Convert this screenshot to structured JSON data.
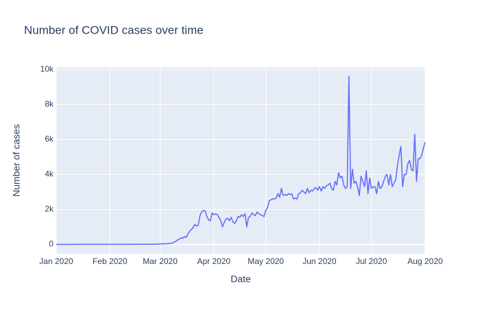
{
  "chart_data": {
    "type": "line",
    "title": "Number of COVID cases over time",
    "x_label": "Date",
    "y_label": "Number of cases",
    "color": "#636efa",
    "grid": true,
    "xlim": [
      "2020-01-01",
      "2020-08-01"
    ],
    "xticks": [
      {
        "value": "2020-01-01",
        "label": "Jan 2020"
      },
      {
        "value": "2020-02-01",
        "label": "Feb 2020"
      },
      {
        "value": "2020-03-01",
        "label": "Mar 2020"
      },
      {
        "value": "2020-04-01",
        "label": "Apr 2020"
      },
      {
        "value": "2020-05-01",
        "label": "May 2020"
      },
      {
        "value": "2020-06-01",
        "label": "Jun 2020"
      },
      {
        "value": "2020-07-01",
        "label": "Jul 2020"
      },
      {
        "value": "2020-08-01",
        "label": "Aug 2020"
      }
    ],
    "ylim": [
      -530,
      10130
    ],
    "yticks": [
      0,
      {
        "value": 2000,
        "label": "2k"
      },
      {
        "value": 4000,
        "label": "4k"
      },
      {
        "value": 6000,
        "label": "6k"
      },
      {
        "value": 8000,
        "label": "8k"
      },
      {
        "value": 10000,
        "label": "10k"
      }
    ],
    "x": [
      "2020-01-01",
      "2020-01-02",
      "2020-01-03",
      "2020-01-04",
      "2020-01-05",
      "2020-01-06",
      "2020-01-07",
      "2020-01-08",
      "2020-01-09",
      "2020-01-10",
      "2020-01-11",
      "2020-01-12",
      "2020-01-13",
      "2020-01-14",
      "2020-01-15",
      "2020-01-16",
      "2020-01-17",
      "2020-01-18",
      "2020-01-19",
      "2020-01-20",
      "2020-01-21",
      "2020-01-22",
      "2020-01-23",
      "2020-01-24",
      "2020-01-25",
      "2020-01-26",
      "2020-01-27",
      "2020-01-28",
      "2020-01-29",
      "2020-01-30",
      "2020-01-31",
      "2020-02-01",
      "2020-02-02",
      "2020-02-03",
      "2020-02-04",
      "2020-02-05",
      "2020-02-06",
      "2020-02-07",
      "2020-02-08",
      "2020-02-09",
      "2020-02-10",
      "2020-02-11",
      "2020-02-12",
      "2020-02-13",
      "2020-02-14",
      "2020-02-15",
      "2020-02-16",
      "2020-02-17",
      "2020-02-18",
      "2020-02-19",
      "2020-02-20",
      "2020-02-21",
      "2020-02-22",
      "2020-02-23",
      "2020-02-24",
      "2020-02-25",
      "2020-02-26",
      "2020-02-27",
      "2020-02-28",
      "2020-02-29",
      "2020-03-01",
      "2020-03-02",
      "2020-03-03",
      "2020-03-04",
      "2020-03-05",
      "2020-03-06",
      "2020-03-07",
      "2020-03-08",
      "2020-03-09",
      "2020-03-10",
      "2020-03-11",
      "2020-03-12",
      "2020-03-13",
      "2020-03-14",
      "2020-03-15",
      "2020-03-16",
      "2020-03-17",
      "2020-03-18",
      "2020-03-19",
      "2020-03-20",
      "2020-03-21",
      "2020-03-22",
      "2020-03-23",
      "2020-03-24",
      "2020-03-25",
      "2020-03-26",
      "2020-03-27",
      "2020-03-28",
      "2020-03-29",
      "2020-03-30",
      "2020-03-31",
      "2020-04-01",
      "2020-04-02",
      "2020-04-03",
      "2020-04-04",
      "2020-04-05",
      "2020-04-06",
      "2020-04-07",
      "2020-04-08",
      "2020-04-09",
      "2020-04-10",
      "2020-04-11",
      "2020-04-12",
      "2020-04-13",
      "2020-04-14",
      "2020-04-15",
      "2020-04-16",
      "2020-04-17",
      "2020-04-18",
      "2020-04-19",
      "2020-04-20",
      "2020-04-21",
      "2020-04-22",
      "2020-04-23",
      "2020-04-24",
      "2020-04-25",
      "2020-04-26",
      "2020-04-27",
      "2020-04-28",
      "2020-04-29",
      "2020-04-30",
      "2020-05-01",
      "2020-05-02",
      "2020-05-03",
      "2020-05-04",
      "2020-05-05",
      "2020-05-06",
      "2020-05-07",
      "2020-05-08",
      "2020-05-09",
      "2020-05-10",
      "2020-05-11",
      "2020-05-12",
      "2020-05-13",
      "2020-05-14",
      "2020-05-15",
      "2020-05-16",
      "2020-05-17",
      "2020-05-18",
      "2020-05-19",
      "2020-05-20",
      "2020-05-21",
      "2020-05-22",
      "2020-05-23",
      "2020-05-24",
      "2020-05-25",
      "2020-05-26",
      "2020-05-27",
      "2020-05-28",
      "2020-05-29",
      "2020-05-30",
      "2020-05-31",
      "2020-06-01",
      "2020-06-02",
      "2020-06-03",
      "2020-06-04",
      "2020-06-05",
      "2020-06-06",
      "2020-06-07",
      "2020-06-08",
      "2020-06-09",
      "2020-06-10",
      "2020-06-11",
      "2020-06-12",
      "2020-06-13",
      "2020-06-14",
      "2020-06-15",
      "2020-06-16",
      "2020-06-17",
      "2020-06-18",
      "2020-06-19",
      "2020-06-20",
      "2020-06-21",
      "2020-06-22",
      "2020-06-23",
      "2020-06-24",
      "2020-06-25",
      "2020-06-26",
      "2020-06-27",
      "2020-06-28",
      "2020-06-29",
      "2020-06-30",
      "2020-07-01",
      "2020-07-02",
      "2020-07-03",
      "2020-07-04",
      "2020-07-05",
      "2020-07-06",
      "2020-07-07",
      "2020-07-08",
      "2020-07-09",
      "2020-07-10",
      "2020-07-11",
      "2020-07-12",
      "2020-07-13",
      "2020-07-14",
      "2020-07-15",
      "2020-07-16",
      "2020-07-17",
      "2020-07-18",
      "2020-07-19",
      "2020-07-20",
      "2020-07-21",
      "2020-07-22",
      "2020-07-23",
      "2020-07-24",
      "2020-07-25",
      "2020-07-26",
      "2020-07-27",
      "2020-07-28",
      "2020-07-29",
      "2020-07-30",
      "2020-07-31",
      "2020-08-01"
    ],
    "values": [
      0,
      0,
      0,
      0,
      0,
      0,
      0,
      0,
      0,
      0,
      0,
      0,
      10,
      5,
      5,
      5,
      5,
      5,
      5,
      5,
      5,
      5,
      5,
      5,
      5,
      5,
      5,
      5,
      5,
      5,
      5,
      5,
      5,
      5,
      5,
      5,
      5,
      5,
      5,
      5,
      5,
      5,
      5,
      5,
      5,
      10,
      10,
      10,
      10,
      10,
      10,
      10,
      10,
      10,
      10,
      10,
      10,
      10,
      10,
      20,
      30,
      30,
      40,
      35,
      40,
      50,
      60,
      80,
      120,
      180,
      250,
      300,
      380,
      350,
      450,
      400,
      600,
      750,
      850,
      950,
      1150,
      1050,
      1100,
      1650,
      1850,
      1950,
      1900,
      1600,
      1400,
      1350,
      1800,
      1700,
      1750,
      1700,
      1550,
      1350,
      1000,
      1250,
      1450,
      1500,
      1350,
      1550,
      1300,
      1200,
      1350,
      1600,
      1550,
      1700,
      1600,
      1750,
      1000,
      1550,
      1600,
      1800,
      1700,
      1650,
      1850,
      1750,
      1700,
      1650,
      1600,
      1950,
      2100,
      2500,
      2550,
      2600,
      2600,
      2650,
      2900,
      2700,
      3200,
      2800,
      2850,
      2800,
      2900,
      2850,
      2900,
      2600,
      2650,
      2600,
      2900,
      2950,
      3100,
      3000,
      2900,
      3200,
      2950,
      3100,
      3050,
      3200,
      3250,
      3100,
      3300,
      3050,
      3300,
      3200,
      3350,
      3400,
      3500,
      3200,
      3100,
      3600,
      3400,
      4100,
      3800,
      3900,
      3400,
      3200,
      3300,
      9600,
      3200,
      4300,
      3500,
      3600,
      3300,
      2800,
      3900,
      3600,
      3300,
      4200,
      2900,
      3800,
      3200,
      3300,
      3300,
      2900,
      3600,
      3200,
      3300,
      3600,
      3900,
      4000,
      3400,
      4000,
      3300,
      3500,
      3700,
      4500,
      5100,
      5600,
      3300,
      4000,
      4000,
      4600,
      4800,
      4300,
      4200,
      6300,
      3600,
      4900,
      4900,
      5100,
      5500,
      5850
    ]
  }
}
